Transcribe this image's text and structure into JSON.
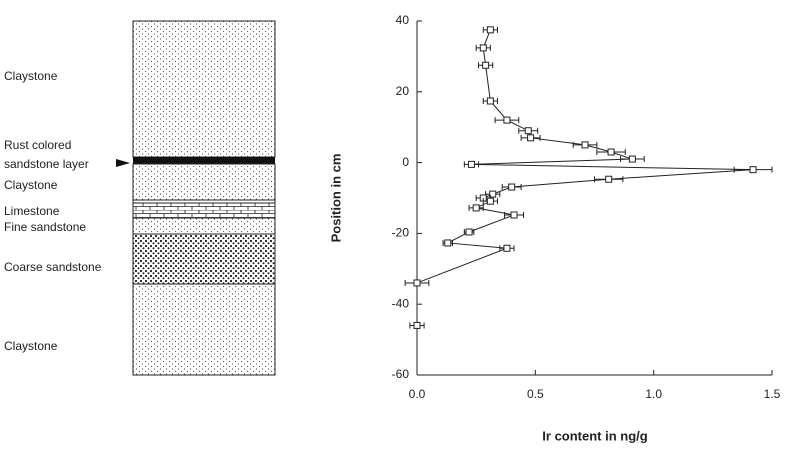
{
  "column": {
    "layers": [
      {
        "lines": [
          "Claystone"
        ]
      },
      {
        "lines": [
          "Rust colored",
          "sandstone layer"
        ]
      },
      {
        "lines": [
          "Claystone"
        ]
      },
      {
        "lines": [
          "Limestone"
        ]
      },
      {
        "lines": [
          "Fine sandstone"
        ]
      },
      {
        "lines": [
          "Coarse sandstone"
        ]
      },
      {
        "lines": [
          "Claystone"
        ]
      }
    ]
  },
  "chart_data": {
    "type": "line",
    "xlabel": "Ir content in ng/g",
    "ylabel": "Position  in cm",
    "xlim": [
      0,
      1.5
    ],
    "ylim": [
      -60,
      40
    ],
    "xticks": [
      {
        "value": 0,
        "label": "0.0"
      },
      0.5,
      {
        "value": 1,
        "label": "1.0"
      },
      1.5
    ],
    "yticks": [
      40,
      20,
      0,
      -20,
      -40,
      -60
    ],
    "color": "#222222",
    "series": [
      {
        "x": [
          0.31,
          0.28,
          0.29,
          0.31,
          0.38,
          0.47,
          0.48,
          0.71,
          0.82,
          0.91,
          0.23,
          1.42,
          0.81,
          0.4,
          0.32,
          0.28,
          0.31,
          0.25,
          0.41,
          0.22,
          0.13,
          0.38,
          0.0,
          0.0
        ],
        "values": [
          37.5,
          32.4,
          27.5,
          17.4,
          12,
          9,
          7,
          5,
          3,
          1,
          -0.5,
          -2,
          -4.7,
          -6.9,
          -8.9,
          -10,
          -10.9,
          -12.8,
          -14.8,
          -19.6,
          -22.7,
          -24.2,
          -34,
          -46
        ],
        "x_errors": [
          0.03,
          0.03,
          0.03,
          0.03,
          0.05,
          0.04,
          0.04,
          0.05,
          0.06,
          0.05,
          0.03,
          0.08,
          0.06,
          0.04,
          0.03,
          0.03,
          0.03,
          0.03,
          0.04,
          0.02,
          0.02,
          0.03,
          0.05,
          0.03
        ]
      }
    ]
  }
}
